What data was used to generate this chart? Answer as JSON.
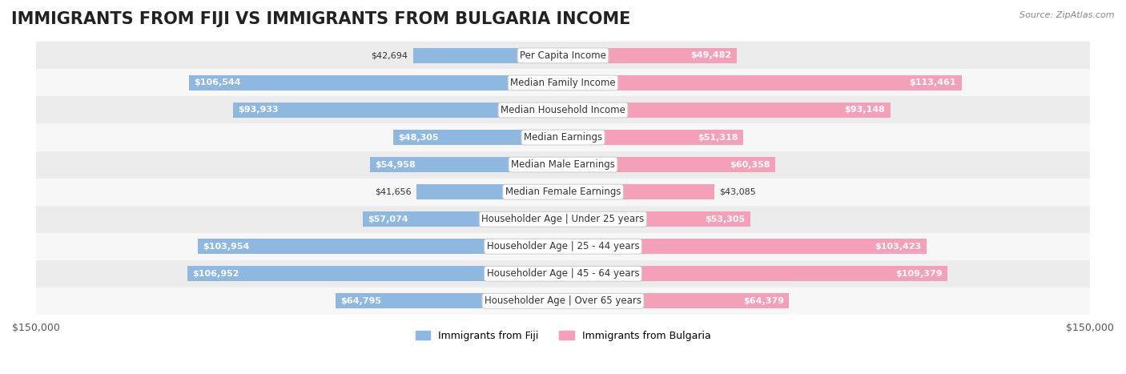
{
  "title": "IMMIGRANTS FROM FIJI VS IMMIGRANTS FROM BULGARIA INCOME",
  "source": "Source: ZipAtlas.com",
  "categories": [
    "Per Capita Income",
    "Median Family Income",
    "Median Household Income",
    "Median Earnings",
    "Median Male Earnings",
    "Median Female Earnings",
    "Householder Age | Under 25 years",
    "Householder Age | 25 - 44 years",
    "Householder Age | 45 - 64 years",
    "Householder Age | Over 65 years"
  ],
  "fiji_values": [
    42694,
    106544,
    93933,
    48305,
    54958,
    41656,
    57074,
    103954,
    106952,
    64795
  ],
  "bulgaria_values": [
    49482,
    113461,
    93148,
    51318,
    60358,
    43085,
    53305,
    103423,
    109379,
    64379
  ],
  "fiji_color": "#8FB8E0",
  "bulgaria_color": "#F4A0B8",
  "fiji_label": "Immigrants from Fiji",
  "bulgaria_label": "Immigrants from Bulgaria",
  "xlim": 150000,
  "bar_height": 0.55,
  "background_color": "#f5f5f5",
  "row_bg_light": "#f0f0f0",
  "row_bg_dark": "#e8e8e8",
  "title_fontsize": 15,
  "label_fontsize": 8.5,
  "value_fontsize": 8,
  "legend_fontsize": 9
}
